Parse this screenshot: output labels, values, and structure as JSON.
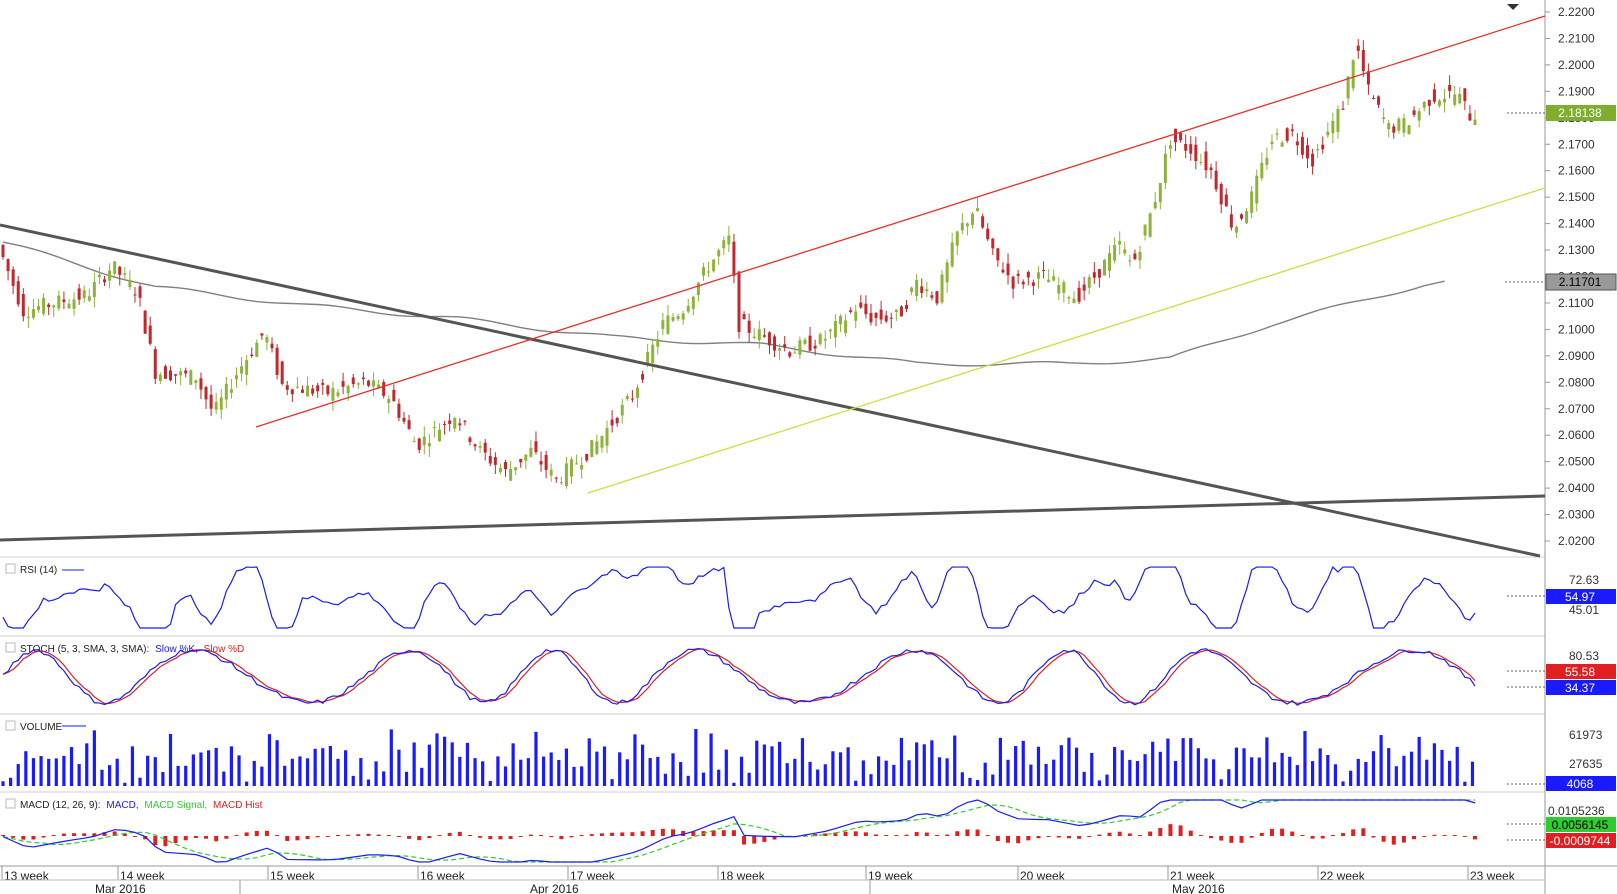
{
  "chart_data": {
    "type": "candlestick-multipanel",
    "price_panel": {
      "y_ticks": [
        "2.2200",
        "2.2100",
        "2.2000",
        "2.1900",
        "2.1800",
        "2.1700",
        "2.1600",
        "2.1500",
        "2.1400",
        "2.1300",
        "2.1200",
        "2.1100",
        "2.1000",
        "2.0900",
        "2.0800",
        "2.0700",
        "2.0600",
        "2.0500",
        "2.0400",
        "2.0300",
        "2.0200"
      ],
      "ylim": [
        2.015,
        2.222
      ],
      "current_price": "2.18138",
      "ma_value": "2.11701",
      "colors": {
        "bull": "#8db33a",
        "bear": "#c0282d",
        "ma": "#808080",
        "trend_dark": "#555555",
        "channel_upper": "#e8302a",
        "channel_lower": "#c8e040"
      }
    },
    "rsi_panel": {
      "title": "RSI (14)",
      "y_ticks": [
        "72.63",
        "45.01"
      ],
      "current": "54.97",
      "color": "#1a1aff"
    },
    "stoch_panel": {
      "title": "STOCH (5, 3, SMA, 3, SMA):",
      "k_label": "Slow %K,",
      "d_label": "Slow %D",
      "y_ticks": [
        "80.53"
      ],
      "current_d": "55.58",
      "current_k": "34.37"
    },
    "volume_panel": {
      "title": "VOLUME",
      "y_ticks": [
        "61973",
        "27635"
      ],
      "current": "4068"
    },
    "macd_panel": {
      "title": "MACD (12, 26, 9):",
      "macd_label": "MACD,",
      "signal_label": "MACD Signal,",
      "hist_label": "MACD Hist",
      "y_ticks": [
        "0.0105236"
      ],
      "current_macd": "0.0056145",
      "current_hist": "-0.0009744"
    },
    "time_axis": {
      "weeks": [
        "13 week",
        "14 week",
        "15 week",
        "16 week",
        "17 week",
        "18 week",
        "19 week",
        "20 week",
        "21 week",
        "22 week",
        "23 week"
      ],
      "months": [
        "Mar 2016",
        "Apr 2016",
        "May 2016"
      ]
    }
  }
}
